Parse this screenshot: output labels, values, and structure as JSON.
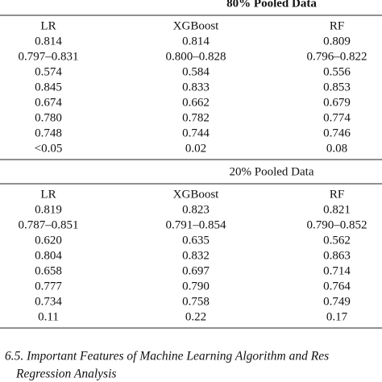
{
  "sections": [
    {
      "title": "80% Pooled Data",
      "headers": [
        "LR",
        "XGBoost",
        "RF"
      ],
      "rows": [
        [
          "0.814",
          "0.814",
          "0.809"
        ],
        [
          "0.797–0.831",
          "0.800–0.828",
          "0.796–0.822"
        ],
        [
          "0.574",
          "0.584",
          "0.556"
        ],
        [
          "0.845",
          "0.833",
          "0.853"
        ],
        [
          "0.674",
          "0.662",
          "0.679"
        ],
        [
          "0.780",
          "0.782",
          "0.774"
        ],
        [
          "0.748",
          "0.744",
          "0.746"
        ],
        [
          "<0.05",
          "0.02",
          "0.08"
        ]
      ]
    },
    {
      "title": "20% Pooled Data",
      "headers": [
        "LR",
        "XGBoost",
        "RF"
      ],
      "rows": [
        [
          "0.819",
          "0.823",
          "0.821"
        ],
        [
          "0.787–0.851",
          "0.791–0.854",
          "0.790–0.852"
        ],
        [
          "0.620",
          "0.635",
          "0.562"
        ],
        [
          "0.804",
          "0.832",
          "0.863"
        ],
        [
          "0.658",
          "0.697",
          "0.714"
        ],
        [
          "0.777",
          "0.790",
          "0.764"
        ],
        [
          "0.734",
          "0.758",
          "0.749"
        ],
        [
          "0.11",
          "0.22",
          "0.17"
        ]
      ]
    }
  ],
  "caption": {
    "line1": "6.5. Important Features of Machine Learning Algorithm and Res",
    "line2": "Regression Analysis"
  }
}
